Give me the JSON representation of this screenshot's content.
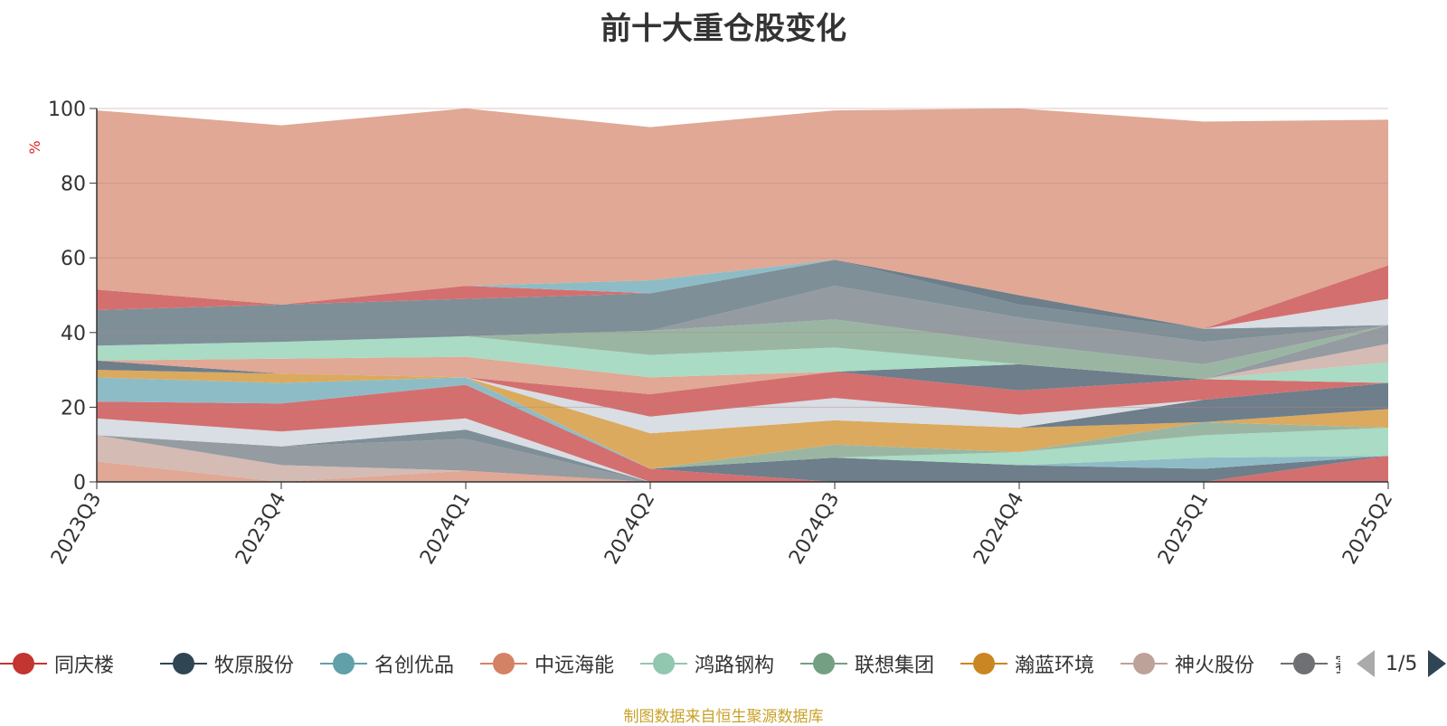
{
  "chart_data": {
    "type": "area",
    "stacked": true,
    "title": "前十大重仓股变化",
    "ylabel": "%",
    "ylim": [
      0,
      100
    ],
    "yticks": [
      0,
      20,
      40,
      60,
      80,
      100
    ],
    "categories": [
      "2023Q3",
      "2023Q4",
      "2024Q1",
      "2024Q2",
      "2024Q3",
      "2024Q4",
      "2025Q1",
      "2025Q2"
    ],
    "series": [
      {
        "name": "",
        "color": "#e0a895",
        "values": [
          5.5,
          0,
          3,
          0,
          0,
          0,
          0,
          0
        ]
      },
      {
        "name": "",
        "color": "#d4bbb4",
        "values": [
          7,
          4.5,
          0,
          0,
          0,
          0,
          0,
          0
        ]
      },
      {
        "name": "",
        "color": "#949ba1",
        "values": [
          0,
          5,
          8.5,
          0,
          0,
          0,
          0,
          0
        ]
      },
      {
        "name": "",
        "color": "#7e8f98",
        "values": [
          0,
          0,
          2.5,
          0,
          0,
          0,
          0,
          0
        ]
      },
      {
        "name": "",
        "color": "#d9dde4",
        "values": [
          4.5,
          4,
          3,
          0,
          0,
          0,
          0,
          0
        ]
      },
      {
        "name": "同庆楼",
        "color": "#d46f6f",
        "values": [
          4.5,
          7.5,
          9,
          3.5,
          0,
          0,
          0,
          7
        ]
      },
      {
        "name": "牧原股份",
        "color": "#6e7e8b",
        "values": [
          0,
          0,
          0,
          0,
          6.5,
          4.5,
          3.5,
          0
        ]
      },
      {
        "name": "名创优品",
        "color": "#8ebcc6",
        "values": [
          6.5,
          5.5,
          2,
          0,
          0,
          0,
          3,
          0
        ]
      },
      {
        "name": "鸿路钢构",
        "color": "#aadbc4",
        "values": [
          0,
          0,
          0,
          0,
          0,
          3.5,
          6,
          7.5
        ]
      },
      {
        "name": "联想集团",
        "color": "#9ab6a3",
        "values": [
          0,
          0,
          0,
          0,
          3.5,
          0,
          3.5,
          0
        ]
      },
      {
        "name": "瀚蓝环境",
        "color": "#dbaa5e",
        "values": [
          2,
          2.5,
          0,
          9.5,
          6.5,
          6.5,
          0,
          5
        ]
      },
      {
        "name": "",
        "color": "#6e7e8b",
        "values": [
          2.5,
          0,
          0,
          0,
          0,
          0,
          6,
          7
        ]
      },
      {
        "name": "",
        "color": "#d9dde4",
        "values": [
          0,
          0,
          0,
          4.5,
          6,
          3.5,
          0,
          0
        ]
      },
      {
        "name": "",
        "color": "#d46f6f",
        "values": [
          0,
          0,
          0,
          6,
          7,
          6.5,
          5.5,
          0
        ]
      },
      {
        "name": "",
        "color": "#aadbc4",
        "values": [
          0,
          0,
          0,
          0,
          0,
          0,
          0,
          5.5
        ]
      },
      {
        "name": "",
        "color": "#d4bbb4",
        "values": [
          0,
          0,
          0,
          0,
          0,
          0,
          0,
          5
        ]
      },
      {
        "name": "",
        "color": "#949ba1",
        "values": [
          0,
          0,
          0,
          0,
          0,
          0,
          0,
          5
        ]
      },
      {
        "name": "",
        "color": "#6e7e8b",
        "values": [
          0,
          0,
          0,
          0,
          0,
          7,
          0,
          0
        ]
      },
      {
        "name": "",
        "color": "#e0a895",
        "values": [
          0,
          4,
          5.5,
          4.5,
          0,
          0,
          0,
          0
        ]
      },
      {
        "name": "",
        "color": "#aadbc4",
        "values": [
          4,
          4.5,
          5.5,
          6,
          6.5,
          0,
          0,
          0
        ]
      },
      {
        "name": "",
        "color": "#9ab6a3",
        "values": [
          0,
          0,
          0,
          6.5,
          7.5,
          5.5,
          4,
          0
        ]
      },
      {
        "name": "",
        "color": "#949ba1",
        "values": [
          0,
          0,
          0,
          0,
          9,
          7,
          6,
          0
        ]
      },
      {
        "name": "",
        "color": "#7e8f98",
        "values": [
          9.5,
          10,
          10,
          10,
          7,
          3.5,
          3.5,
          0
        ]
      },
      {
        "name": "",
        "color": "#6e7e8b",
        "values": [
          0,
          0,
          0,
          0,
          0,
          2.5,
          0,
          0
        ]
      },
      {
        "name": "",
        "color": "#d9dde4",
        "values": [
          0,
          0,
          0,
          0,
          0,
          0,
          0,
          7
        ]
      },
      {
        "name": "",
        "color": "#d46f6f",
        "values": [
          5.5,
          0,
          3.5,
          0,
          0,
          0,
          0,
          9
        ]
      },
      {
        "name": "",
        "color": "#8ebcc6",
        "values": [
          0,
          0,
          0,
          3.5,
          0,
          0,
          0,
          0
        ]
      },
      {
        "name": "",
        "color": "#e0a895",
        "values": [
          48,
          48,
          47.5,
          41,
          40,
          50,
          55.5,
          39
        ]
      }
    ]
  },
  "legend": {
    "items": [
      {
        "name": "同庆楼",
        "color": "#c23531"
      },
      {
        "name": "牧原股份",
        "color": "#2f4554"
      },
      {
        "name": "名创优品",
        "color": "#61a0a8"
      },
      {
        "name": "中远海能",
        "color": "#d48265"
      },
      {
        "name": "鸿路钢构",
        "color": "#91c7ae"
      },
      {
        "name": "联想集团",
        "color": "#749f83"
      },
      {
        "name": "瀚蓝环境",
        "color": "#ca8622"
      },
      {
        "name": "神火股份",
        "color": "#bda29a"
      },
      {
        "name": "赛轮轮胎",
        "color": "#6e7074"
      }
    ],
    "page": "1/5"
  },
  "source_note": "制图数据来自恒生聚源数据库"
}
